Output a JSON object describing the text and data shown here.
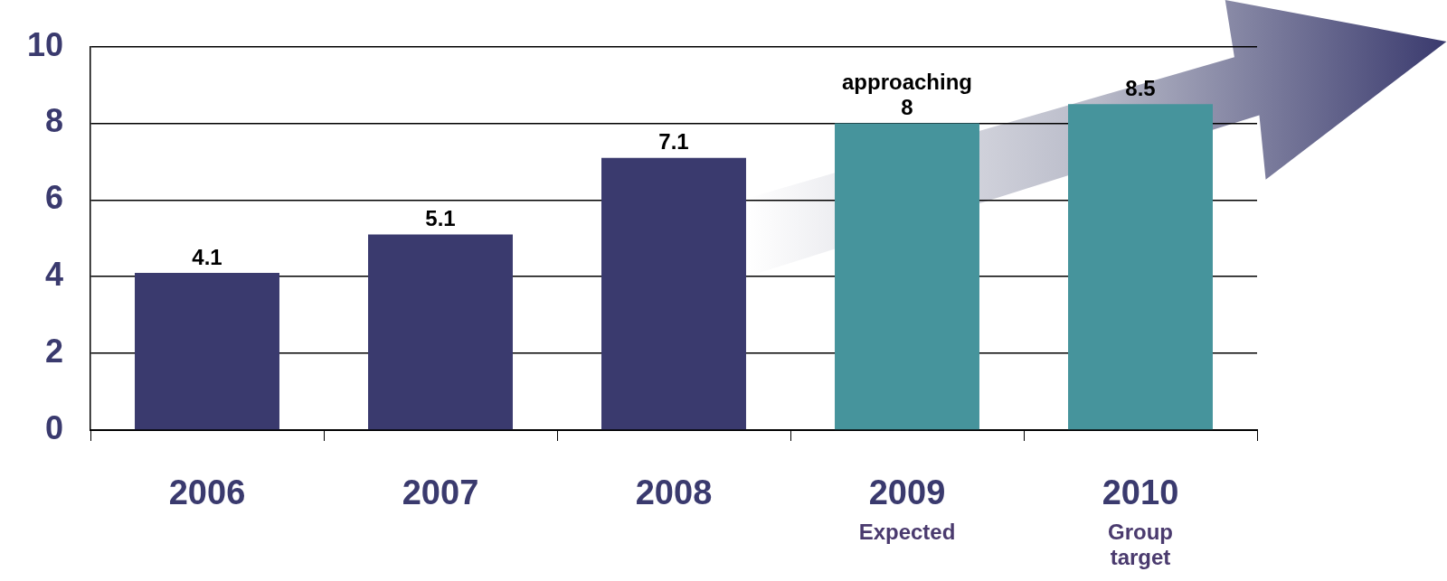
{
  "chart_data": {
    "type": "bar",
    "categories": [
      "2006",
      "2007",
      "2008",
      "2009\nExpected",
      "2010\nGroup\ntarget"
    ],
    "values": [
      4.1,
      5.1,
      7.1,
      8,
      8.5
    ],
    "colors": [
      "#3a3a6e",
      "#3a3a6e",
      "#3a3a6e",
      "#46949c",
      "#46949c"
    ],
    "value_labels": [
      "4.1",
      "5.1",
      "7.1",
      "approaching\n8",
      "8.5"
    ],
    "ylim": [
      0,
      10
    ],
    "yticks": [
      0,
      2,
      4,
      6,
      8,
      10
    ],
    "grid": "y",
    "legend": false
  }
}
